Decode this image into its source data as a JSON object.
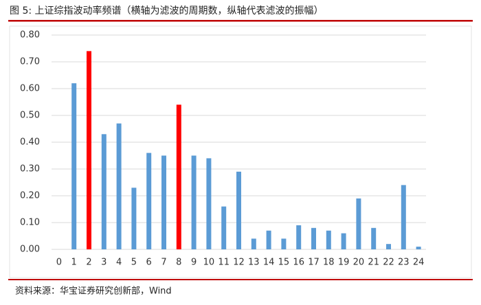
{
  "chart_data": {
    "type": "bar",
    "title": "图 5:  上证综指波动率频谱（横轴为滤波的周期数，纵轴代表滤波的振幅）",
    "source": "资料来源：华宝证券研究创新部，Wind",
    "categories": [
      "0",
      "1",
      "2",
      "3",
      "4",
      "5",
      "6",
      "7",
      "8",
      "9",
      "10",
      "11",
      "12",
      "13",
      "14",
      "15",
      "16",
      "17",
      "18",
      "19",
      "20",
      "21",
      "22",
      "23",
      "24"
    ],
    "values": [
      0,
      0.62,
      0.74,
      0.43,
      0.47,
      0.23,
      0.36,
      0.35,
      0.54,
      0.35,
      0.34,
      0.16,
      0.29,
      0.04,
      0.07,
      0.04,
      0.09,
      0.08,
      0.07,
      0.06,
      0.19,
      0.08,
      0.02,
      0.24,
      0.01
    ],
    "colors": [
      "#5b9bd5",
      "#5b9bd5",
      "#ff0000",
      "#5b9bd5",
      "#5b9bd5",
      "#5b9bd5",
      "#5b9bd5",
      "#5b9bd5",
      "#ff0000",
      "#5b9bd5",
      "#5b9bd5",
      "#5b9bd5",
      "#5b9bd5",
      "#5b9bd5",
      "#5b9bd5",
      "#5b9bd5",
      "#5b9bd5",
      "#5b9bd5",
      "#5b9bd5",
      "#5b9bd5",
      "#5b9bd5",
      "#5b9bd5",
      "#5b9bd5",
      "#5b9bd5",
      "#5b9bd5"
    ],
    "ylim": [
      0,
      0.8
    ],
    "yticks": [
      {
        "value": 0,
        "label": "0.00"
      },
      {
        "value": 0.1,
        "label": "0.10"
      },
      {
        "value": 0.2,
        "label": "0.20"
      },
      {
        "value": 0.3,
        "label": "0.30"
      },
      {
        "value": 0.4,
        "label": "0.40"
      },
      {
        "value": 0.5,
        "label": "0.50"
      },
      {
        "value": 0.6,
        "label": "0.60"
      },
      {
        "value": 0.7,
        "label": "0.70"
      },
      {
        "value": 0.8,
        "label": "0.80"
      }
    ],
    "grid": true
  }
}
